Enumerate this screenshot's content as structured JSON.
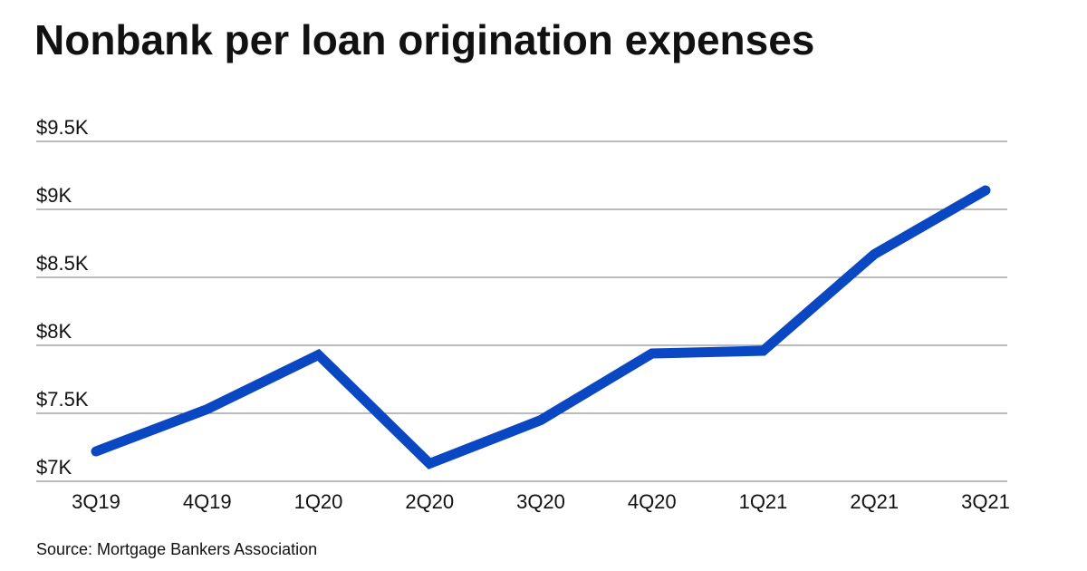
{
  "chart_data": {
    "type": "line",
    "title": "Nonbank per loan origination expenses",
    "source": "Source: Mortgage Bankers Association",
    "categories": [
      "3Q19",
      "4Q19",
      "1Q20",
      "2Q20",
      "3Q20",
      "4Q20",
      "1Q21",
      "2Q21",
      "3Q21"
    ],
    "values": [
      7220,
      7530,
      7930,
      7130,
      7450,
      7940,
      7960,
      8670,
      9140
    ],
    "color": "#0a47c2",
    "ylim": [
      7000,
      9500
    ],
    "yticks": [
      {
        "value": 7000,
        "label": "$7K"
      },
      {
        "value": 7500,
        "label": "$7.5K"
      },
      {
        "value": 8000,
        "label": "$8K"
      },
      {
        "value": 8500,
        "label": "$8.5K"
      },
      {
        "value": 9000,
        "label": "$9K"
      },
      {
        "value": 9500,
        "label": "$9.5K"
      }
    ],
    "grid": true
  }
}
